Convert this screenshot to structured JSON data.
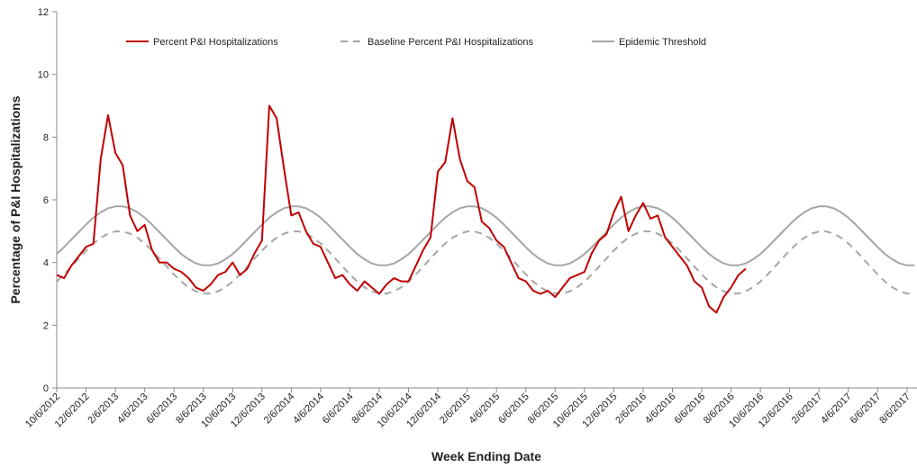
{
  "chart_data": {
    "type": "line",
    "x_label": "Week Ending Date",
    "y_label": "Percentage of P&I Hospitalizations",
    "ylim": [
      0,
      12
    ],
    "yticks": [
      0,
      2,
      4,
      6,
      8,
      10,
      12
    ],
    "grid": false,
    "legend": "top",
    "categories": [
      "10/6/2012",
      null,
      null,
      null,
      "12/6/2012",
      null,
      null,
      null,
      "2/6/2013",
      null,
      null,
      null,
      "4/6/2013",
      null,
      null,
      null,
      "6/6/2013",
      null,
      null,
      null,
      "8/6/2013",
      null,
      null,
      null,
      "10/6/2013",
      null,
      null,
      null,
      "12/6/2013",
      null,
      null,
      null,
      "2/6/2014",
      null,
      null,
      null,
      "4/6/2014",
      null,
      null,
      null,
      "6/6/2014",
      null,
      null,
      null,
      "8/6/2014",
      null,
      null,
      null,
      "10/6/2014",
      null,
      null,
      null,
      "12/6/2014",
      null,
      null,
      null,
      "2/6/2015",
      null,
      null,
      null,
      "4/6/2015",
      null,
      null,
      null,
      "6/6/2015",
      null,
      null,
      null,
      "8/6/2015",
      null,
      null,
      null,
      "10/6/2015",
      null,
      null,
      null,
      "12/6/2015",
      null,
      null,
      null,
      "2/6/2016",
      null,
      null,
      null,
      "4/6/2016",
      null,
      null,
      null,
      "6/6/2016",
      null,
      null,
      null,
      "8/6/2016",
      null,
      null,
      null,
      "10/6/2016",
      null,
      null,
      null,
      "12/6/2016",
      null,
      null,
      null,
      "2/6/2017",
      null,
      null,
      null,
      "4/6/2017",
      null,
      null,
      null,
      "6/6/2017",
      null,
      null,
      null,
      "8/6/2017",
      null
    ],
    "series": [
      {
        "name": "Percent P&I Hospitalizations",
        "color": "#c00000",
        "dashed": false,
        "width": 2,
        "values": [
          3.6,
          3.5,
          3.9,
          4.2,
          4.5,
          4.6,
          7.3,
          8.7,
          7.5,
          7.1,
          5.5,
          5.0,
          5.2,
          4.4,
          4.0,
          4.0,
          3.8,
          3.7,
          3.5,
          3.2,
          3.1,
          3.3,
          3.6,
          3.7,
          4.0,
          3.6,
          3.8,
          4.3,
          4.7,
          9.0,
          8.6,
          7.0,
          5.5,
          5.6,
          5.0,
          4.6,
          4.5,
          4.0,
          3.5,
          3.6,
          3.3,
          3.1,
          3.4,
          3.2,
          3.0,
          3.3,
          3.5,
          3.4,
          3.4,
          3.9,
          4.4,
          4.8,
          6.9,
          7.2,
          8.6,
          7.3,
          6.6,
          6.4,
          5.3,
          5.1,
          4.7,
          4.5,
          4.0,
          3.5,
          3.4,
          3.1,
          3.0,
          3.1,
          2.9,
          3.2,
          3.5,
          3.6,
          3.7,
          4.3,
          4.7,
          4.9,
          5.6,
          6.1,
          5.0,
          5.5,
          5.9,
          5.4,
          5.5,
          4.8,
          4.5,
          4.2,
          3.9,
          3.4,
          3.2,
          2.6,
          2.4,
          2.9,
          3.2,
          3.6,
          3.8,
          null,
          null,
          null,
          null,
          null,
          null,
          null,
          null,
          null,
          null,
          null,
          null,
          null,
          null,
          null,
          null,
          null,
          null,
          null,
          null,
          null,
          null,
          null
        ]
      },
      {
        "name": "Baseline Percent P&I Hospitalizations",
        "color": "#a6a6a6",
        "dashed": true,
        "width": 2,
        "values": [
          3.39,
          3.62,
          3.87,
          4.13,
          4.38,
          4.61,
          4.79,
          4.92,
          4.99,
          4.99,
          4.92,
          4.79,
          4.61,
          4.38,
          4.13,
          3.87,
          3.62,
          3.39,
          3.21,
          3.08,
          3.01,
          3.01,
          3.08,
          3.21,
          3.39,
          3.62,
          3.87,
          4.13,
          4.38,
          4.61,
          4.79,
          4.92,
          4.99,
          4.99,
          4.92,
          4.79,
          4.61,
          4.38,
          4.13,
          3.87,
          3.62,
          3.39,
          3.21,
          3.08,
          3.01,
          3.01,
          3.08,
          3.21,
          3.39,
          3.62,
          3.87,
          4.13,
          4.38,
          4.61,
          4.79,
          4.92,
          4.99,
          4.99,
          4.92,
          4.79,
          4.61,
          4.38,
          4.13,
          3.87,
          3.62,
          3.39,
          3.21,
          3.08,
          3.01,
          3.01,
          3.08,
          3.21,
          3.39,
          3.62,
          3.87,
          4.13,
          4.38,
          4.61,
          4.79,
          4.92,
          4.99,
          4.99,
          4.92,
          4.79,
          4.61,
          4.38,
          4.13,
          3.87,
          3.62,
          3.39,
          3.21,
          3.08,
          3.01,
          3.01,
          3.08,
          3.21,
          3.39,
          3.62,
          3.87,
          4.13,
          4.38,
          4.61,
          4.79,
          4.92,
          4.99,
          4.99,
          4.92,
          4.79,
          4.61,
          4.38,
          4.13,
          3.87,
          3.62,
          3.39,
          3.21,
          3.08,
          3.01,
          3.01
        ]
      },
      {
        "name": "Epidemic Threshold",
        "color": "#a6a6a6",
        "dashed": false,
        "width": 2,
        "values": [
          4.27,
          4.49,
          4.73,
          4.97,
          5.21,
          5.43,
          5.6,
          5.73,
          5.79,
          5.79,
          5.73,
          5.6,
          5.43,
          5.21,
          4.97,
          4.73,
          4.49,
          4.27,
          4.1,
          3.97,
          3.91,
          3.91,
          3.97,
          4.1,
          4.27,
          4.49,
          4.73,
          4.97,
          5.21,
          5.43,
          5.6,
          5.73,
          5.79,
          5.79,
          5.73,
          5.6,
          5.43,
          5.21,
          4.97,
          4.73,
          4.49,
          4.27,
          4.1,
          3.97,
          3.91,
          3.91,
          3.97,
          4.1,
          4.27,
          4.49,
          4.73,
          4.97,
          5.21,
          5.43,
          5.6,
          5.73,
          5.79,
          5.79,
          5.73,
          5.6,
          5.43,
          5.21,
          4.97,
          4.73,
          4.49,
          4.27,
          4.1,
          3.97,
          3.91,
          3.91,
          3.97,
          4.1,
          4.27,
          4.49,
          4.73,
          4.97,
          5.21,
          5.43,
          5.6,
          5.73,
          5.79,
          5.79,
          5.73,
          5.6,
          5.43,
          5.21,
          4.97,
          4.73,
          4.49,
          4.27,
          4.1,
          3.97,
          3.91,
          3.91,
          3.97,
          4.1,
          4.27,
          4.49,
          4.73,
          4.97,
          5.21,
          5.43,
          5.6,
          5.73,
          5.79,
          5.79,
          5.73,
          5.6,
          5.43,
          5.21,
          4.97,
          4.73,
          4.49,
          4.27,
          4.1,
          3.97,
          3.91,
          3.91
        ]
      }
    ]
  }
}
